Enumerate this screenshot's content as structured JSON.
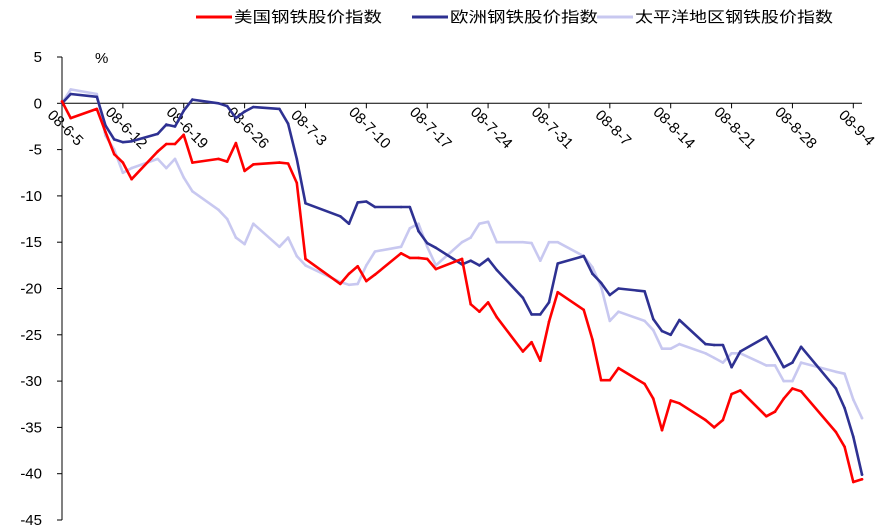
{
  "chart_data": {
    "type": "line",
    "unit_label": "%",
    "ylim": [
      -45,
      5
    ],
    "yticks": [
      5,
      0,
      -5,
      -10,
      -15,
      -20,
      -25,
      -30,
      -35,
      -40,
      -45
    ],
    "xlim": [
      "2008-06-05",
      "2008-09-05"
    ],
    "xticks": [
      "08-6-5",
      "08-6-12",
      "08-6-19",
      "08-6-26",
      "08-7-3",
      "08-7-10",
      "08-7-17",
      "08-7-24",
      "08-7-31",
      "08-8-7",
      "08-8-14",
      "08-8-21",
      "08-8-28",
      "08-9-4"
    ],
    "xtick_dates": [
      "2008-06-05",
      "2008-06-12",
      "2008-06-19",
      "2008-06-26",
      "2008-07-03",
      "2008-07-10",
      "2008-07-17",
      "2008-07-24",
      "2008-07-31",
      "2008-08-07",
      "2008-08-14",
      "2008-08-21",
      "2008-08-28",
      "2008-09-04"
    ],
    "legend_position": "top",
    "grid": false,
    "series": [
      {
        "name": "美国钢铁股价指数",
        "color": "#ff0000",
        "x": [
          "2008-06-05",
          "2008-06-06",
          "2008-06-09",
          "2008-06-10",
          "2008-06-11",
          "2008-06-12",
          "2008-06-13",
          "2008-06-16",
          "2008-06-17",
          "2008-06-18",
          "2008-06-19",
          "2008-06-20",
          "2008-06-23",
          "2008-06-24",
          "2008-06-25",
          "2008-06-26",
          "2008-06-27",
          "2008-06-30",
          "2008-07-01",
          "2008-07-02",
          "2008-07-03",
          "2008-07-07",
          "2008-07-08",
          "2008-07-09",
          "2008-07-10",
          "2008-07-11",
          "2008-07-14",
          "2008-07-15",
          "2008-07-16",
          "2008-07-17",
          "2008-07-18",
          "2008-07-21",
          "2008-07-22",
          "2008-07-23",
          "2008-07-24",
          "2008-07-25",
          "2008-07-28",
          "2008-07-29",
          "2008-07-30",
          "2008-07-31",
          "2008-08-01",
          "2008-08-04",
          "2008-08-05",
          "2008-08-06",
          "2008-08-07",
          "2008-08-08",
          "2008-08-11",
          "2008-08-12",
          "2008-08-13",
          "2008-08-14",
          "2008-08-15",
          "2008-08-18",
          "2008-08-19",
          "2008-08-20",
          "2008-08-21",
          "2008-08-22",
          "2008-08-25",
          "2008-08-26",
          "2008-08-27",
          "2008-08-28",
          "2008-08-29",
          "2008-09-02",
          "2008-09-03",
          "2008-09-04",
          "2008-09-05"
        ],
        "values": [
          0.2,
          -1.6,
          -0.6,
          -3.1,
          -5.5,
          -6.4,
          -8.2,
          -5.2,
          -4.4,
          -4.4,
          -3.4,
          -6.4,
          -6.0,
          -6.3,
          -4.3,
          -7.3,
          -6.6,
          -6.4,
          -6.5,
          -8.6,
          -16.8,
          -19.5,
          -18.4,
          -17.6,
          -19.2,
          -18.5,
          -16.2,
          -16.7,
          -16.7,
          -16.8,
          -17.9,
          -16.8,
          -21.7,
          -22.5,
          -21.5,
          -23.1,
          -26.8,
          -25.8,
          -27.8,
          -23.6,
          -20.4,
          -22.3,
          -25.5,
          -29.9,
          -29.9,
          -28.6,
          -30.3,
          -31.9,
          -35.3,
          -32.1,
          -32.4,
          -34.2,
          -35.0,
          -34.2,
          -31.4,
          -31.0,
          -33.8,
          -33.3,
          -31.9,
          -30.8,
          -31.1,
          -35.5,
          -37.1,
          -40.9,
          -40.6
        ]
      },
      {
        "name": "欧洲钢铁股价指数",
        "color": "#2e3192",
        "x": [
          "2008-06-05",
          "2008-06-06",
          "2008-06-09",
          "2008-06-10",
          "2008-06-11",
          "2008-06-12",
          "2008-06-13",
          "2008-06-16",
          "2008-06-17",
          "2008-06-18",
          "2008-06-19",
          "2008-06-20",
          "2008-06-23",
          "2008-06-24",
          "2008-06-25",
          "2008-06-26",
          "2008-06-27",
          "2008-06-30",
          "2008-07-01",
          "2008-07-02",
          "2008-07-03",
          "2008-07-07",
          "2008-07-08",
          "2008-07-09",
          "2008-07-10",
          "2008-07-11",
          "2008-07-14",
          "2008-07-15",
          "2008-07-16",
          "2008-07-17",
          "2008-07-18",
          "2008-07-21",
          "2008-07-22",
          "2008-07-23",
          "2008-07-24",
          "2008-07-25",
          "2008-07-28",
          "2008-07-29",
          "2008-07-30",
          "2008-07-31",
          "2008-08-01",
          "2008-08-04",
          "2008-08-05",
          "2008-08-06",
          "2008-08-07",
          "2008-08-08",
          "2008-08-11",
          "2008-08-12",
          "2008-08-13",
          "2008-08-14",
          "2008-08-15",
          "2008-08-18",
          "2008-08-19",
          "2008-08-20",
          "2008-08-21",
          "2008-08-22",
          "2008-08-25",
          "2008-08-26",
          "2008-08-27",
          "2008-08-28",
          "2008-08-29",
          "2008-09-02",
          "2008-09-03",
          "2008-09-04",
          "2008-09-05"
        ],
        "values": [
          0.0,
          1.0,
          0.7,
          -2.4,
          -3.9,
          -4.2,
          -4.1,
          -3.3,
          -2.3,
          -2.5,
          -0.8,
          0.4,
          0.0,
          -0.3,
          -1.6,
          -0.9,
          -0.4,
          -0.6,
          -2.2,
          -6.0,
          -10.8,
          -12.2,
          -13.0,
          -10.7,
          -10.6,
          -11.2,
          -11.2,
          -11.2,
          -13.8,
          -15.1,
          -15.6,
          -17.4,
          -17.0,
          -17.5,
          -16.8,
          -18.0,
          -21.0,
          -22.8,
          -22.8,
          -21.5,
          -17.3,
          -16.5,
          -18.4,
          -19.4,
          -20.7,
          -20.0,
          -20.3,
          -23.3,
          -24.6,
          -25.0,
          -23.4,
          -26.0,
          -26.1,
          -26.1,
          -28.5,
          -26.8,
          -25.2,
          -26.8,
          -28.5,
          -28.0,
          -26.3,
          -30.8,
          -32.9,
          -36.0,
          -40.1
        ]
      },
      {
        "name": "太平洋地区钢铁股价指数",
        "color": "#c8c8f0",
        "x": [
          "2008-06-05",
          "2008-06-06",
          "2008-06-09",
          "2008-06-10",
          "2008-06-11",
          "2008-06-12",
          "2008-06-13",
          "2008-06-16",
          "2008-06-17",
          "2008-06-18",
          "2008-06-19",
          "2008-06-20",
          "2008-06-23",
          "2008-06-24",
          "2008-06-25",
          "2008-06-26",
          "2008-06-27",
          "2008-06-30",
          "2008-07-01",
          "2008-07-02",
          "2008-07-03",
          "2008-07-07",
          "2008-07-08",
          "2008-07-09",
          "2008-07-10",
          "2008-07-11",
          "2008-07-14",
          "2008-07-15",
          "2008-07-16",
          "2008-07-17",
          "2008-07-18",
          "2008-07-21",
          "2008-07-22",
          "2008-07-23",
          "2008-07-24",
          "2008-07-25",
          "2008-07-28",
          "2008-07-29",
          "2008-07-30",
          "2008-07-31",
          "2008-08-01",
          "2008-08-04",
          "2008-08-05",
          "2008-08-06",
          "2008-08-07",
          "2008-08-08",
          "2008-08-11",
          "2008-08-12",
          "2008-08-13",
          "2008-08-14",
          "2008-08-15",
          "2008-08-18",
          "2008-08-19",
          "2008-08-20",
          "2008-08-21",
          "2008-08-22",
          "2008-08-25",
          "2008-08-26",
          "2008-08-27",
          "2008-08-28",
          "2008-08-29",
          "2008-09-02",
          "2008-09-03",
          "2008-09-04",
          "2008-09-05"
        ],
        "values": [
          0.0,
          1.5,
          1.0,
          -3.5,
          -5.0,
          -7.5,
          -7.0,
          -6.0,
          -7.0,
          -6.0,
          -8.0,
          -9.5,
          -11.5,
          -12.5,
          -14.5,
          -15.2,
          -13.0,
          -15.5,
          -14.5,
          -16.5,
          -17.5,
          -19.3,
          -19.6,
          -19.5,
          -17.5,
          -16.0,
          -15.5,
          -13.5,
          -13.0,
          -15.5,
          -17.5,
          -15.0,
          -14.5,
          -13.0,
          -12.8,
          -15.0,
          -15.0,
          -15.1,
          -17.0,
          -15.0,
          -15.0,
          -16.5,
          -17.7,
          -19.8,
          -23.5,
          -22.5,
          -23.5,
          -24.5,
          -26.5,
          -26.5,
          -26.0,
          -27.0,
          -27.5,
          -28.0,
          -27.0,
          -27.0,
          -28.3,
          -28.3,
          -30.0,
          -30.0,
          -28.0,
          -29.0,
          -29.2,
          -32.0,
          -34.0
        ]
      }
    ]
  }
}
